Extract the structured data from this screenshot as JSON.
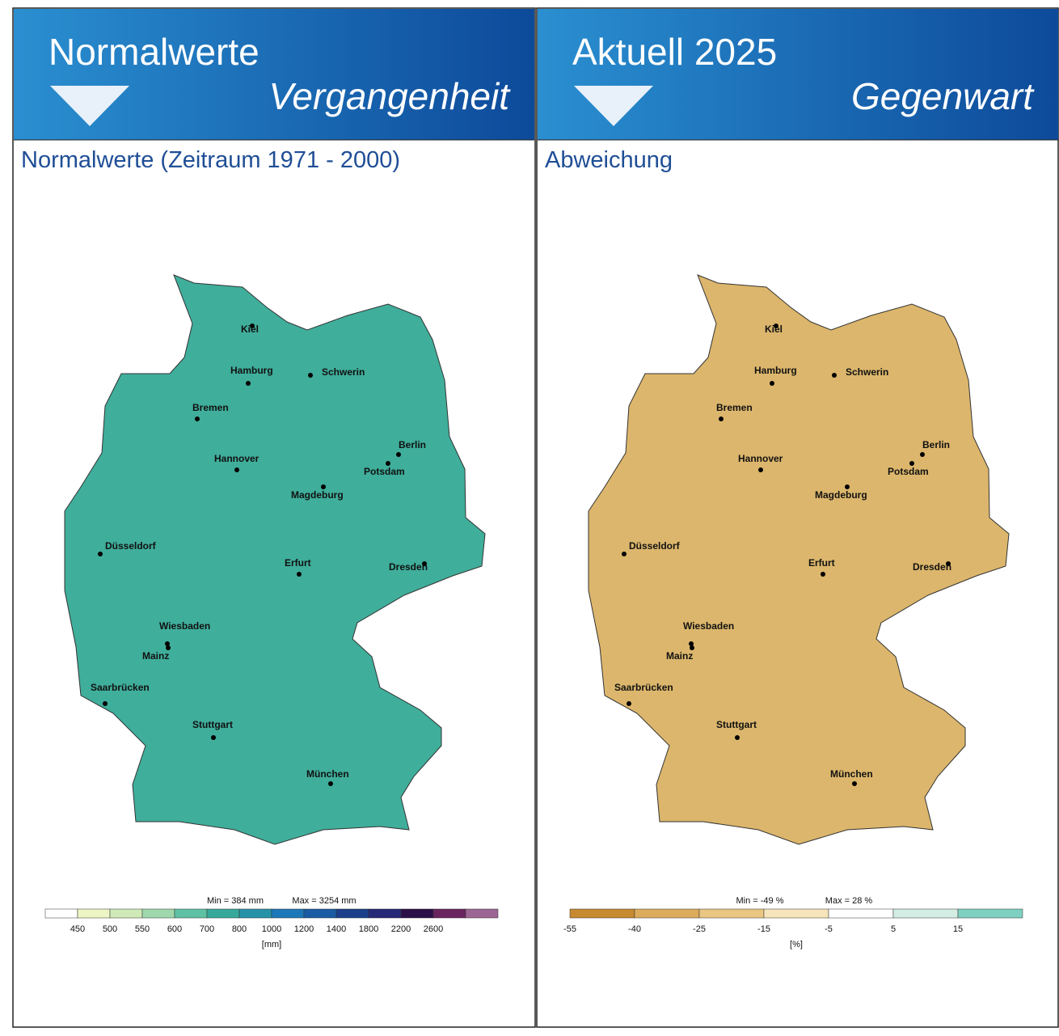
{
  "panels": [
    {
      "header": {
        "title": "Normalwerte",
        "subtitle": "Vergangenheit"
      },
      "map_title": "Normalwerte (Zeitraum 1971 - 2000)",
      "map_color": "#3fae9b",
      "cities": [
        "Kiel",
        "Hamburg",
        "Schwerin",
        "Bremen",
        "Hannover",
        "Berlin",
        "Potsdam",
        "Magdeburg",
        "Düsseldorf",
        "Erfurt",
        "Dresden",
        "Wiesbaden",
        "Mainz",
        "Saarbrücken",
        "Stuttgart",
        "München"
      ],
      "legend": {
        "min": "Min = 384 mm",
        "max": "Max = 3254 mm",
        "ticks": [
          "450",
          "500",
          "550",
          "600",
          "700",
          "800",
          "1000",
          "1200",
          "1400",
          "1800",
          "2200",
          "2600"
        ],
        "unit": "[mm]",
        "colors": [
          "#ffffff",
          "#eef5c4",
          "#cfeab6",
          "#9fd8ac",
          "#5fc1a3",
          "#36a99a",
          "#2592a8",
          "#1c78b8",
          "#1a5ca4",
          "#1b3f8a",
          "#262878",
          "#2b0f48",
          "#6a2460",
          "#9c6694"
        ]
      }
    },
    {
      "header": {
        "title": "Aktuell 2025",
        "subtitle": "Gegenwart"
      },
      "map_title": "Abweichung",
      "map_color": "#dcb66c",
      "cities": [
        "Kiel",
        "Hamburg",
        "Schwerin",
        "Bremen",
        "Hannover",
        "Berlin",
        "Potsdam",
        "Magdeburg",
        "Düsseldorf",
        "Erfurt",
        "Dresden",
        "Wiesbaden",
        "Mainz",
        "Saarbrücken",
        "Stuttgart",
        "München"
      ],
      "legend": {
        "min": "Min = -49 %",
        "max": "Max = 28 %",
        "ticks": [
          "-55",
          "-40",
          "-25",
          "-15",
          "-5",
          "5",
          "15"
        ],
        "unit": "[%]",
        "colors": [
          "#c78a30",
          "#dcac5c",
          "#e9c681",
          "#f6e4ba",
          "#ffffff",
          "#d3ece4",
          "#7fd0c0"
        ]
      }
    }
  ]
}
